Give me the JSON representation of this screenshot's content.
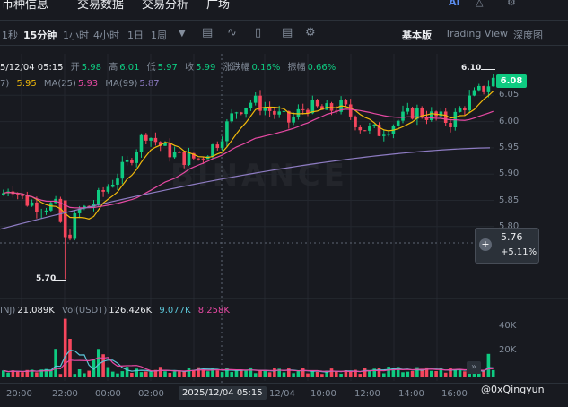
{
  "nav": {
    "tabs": [
      "币种信息",
      "交易数据",
      "交易分析",
      "广场"
    ],
    "icons": [
      "ai-icon",
      "bell-icon",
      "settings-icon"
    ]
  },
  "toolbar": {
    "timeframes": [
      "1秒",
      "15分钟",
      "1小时",
      "4小时",
      "1日",
      "1周"
    ],
    "active_timeframe": "15分钟",
    "tools": [
      "calendar-icon",
      "chart-line-icon",
      "candlestick-icon",
      "indicator-icon",
      "settings-icon"
    ],
    "views": [
      "基本版",
      "Trading View",
      "深度图"
    ],
    "active_view": "基本版"
  },
  "ohlc": {
    "time": "5/12/04 05:15",
    "open_label": "开",
    "open": "5.98",
    "high_label": "高",
    "high": "6.01",
    "low_label": "低",
    "low": "5.97",
    "close_label": "收",
    "close": "5.99",
    "change_label": "涨跌幅",
    "change": "0.16%",
    "amp_label": "振幅",
    "amp": "0.66%"
  },
  "ma": {
    "prefix": "7)",
    "ma7": "5.95",
    "ma25_label": "MA(25)",
    "ma25": "5.93",
    "ma99_label": "MA(99)",
    "ma99": "5.87"
  },
  "price_axis": {
    "ticks": [
      "6.10",
      "6.05",
      "6.00",
      "5.95",
      "5.90",
      "5.85",
      "5.80"
    ],
    "current_price": "6.08",
    "high_marker": "6.10",
    "low_marker": "5.70",
    "crosshair_price": "5.76",
    "crosshair_change": "+5.11%"
  },
  "volume": {
    "label_inj": "INJ)",
    "inj_value": "21.089K",
    "vol_label": "Vol(USDT)",
    "vol_usdt": "126.426K",
    "ma1": "9.077K",
    "ma2": "8.258K",
    "ticks": [
      "40K",
      "20K"
    ]
  },
  "time_axis": {
    "labels": [
      "20:00",
      "22:00",
      "00:00",
      "02:00",
      "12/04",
      "10:00",
      "12:00",
      "14:00",
      "16:00"
    ],
    "crosshair_time": "2025/12/04 05:15"
  },
  "watermark": "BINANCE",
  "credit": "@0xQingyun",
  "colors": {
    "up": "#0ecb81",
    "down": "#f6465d",
    "ma7": "#f0b90b",
    "ma25": "#e649a3",
    "ma99": "#8e7cc3",
    "bg": "#181a20"
  }
}
